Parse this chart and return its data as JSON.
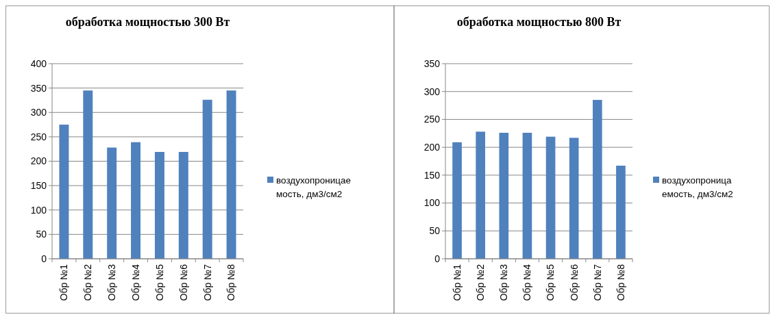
{
  "chart_data": [
    {
      "type": "bar",
      "title": "обработка мощностью 300 Вт",
      "categories": [
        "Обр №1",
        "Обр №2",
        "Обр №3",
        "Обр №4",
        "Обр №5",
        "Обр №6",
        "Обр №7",
        "Обр №8"
      ],
      "series": [
        {
          "name": "воздухопроницаемость, дм3/см2",
          "color": "#4f81bd",
          "values": [
            275,
            345,
            228,
            239,
            219,
            219,
            326,
            345
          ]
        }
      ],
      "ylim": [
        0,
        400
      ],
      "yticks": [
        0,
        50,
        100,
        150,
        200,
        250,
        300,
        350,
        400
      ],
      "grid": "y",
      "legend": "right"
    },
    {
      "type": "bar",
      "title": "обработка мощностью 800 Вт",
      "categories": [
        "Обр №1",
        "Обр №2",
        "Обр №3",
        "Обр №4",
        "Обр №5",
        "Обр №6",
        "Обр №7",
        "Обр №8"
      ],
      "series": [
        {
          "name": "воздухопроницаемость, дм3/см2",
          "color": "#4f81bd",
          "values": [
            209,
            228,
            226,
            226,
            219,
            217,
            285,
            167
          ]
        }
      ],
      "ylim": [
        0,
        350
      ],
      "yticks": [
        0,
        50,
        100,
        150,
        200,
        250,
        300,
        350
      ],
      "grid": "y",
      "legend": "right"
    }
  ]
}
